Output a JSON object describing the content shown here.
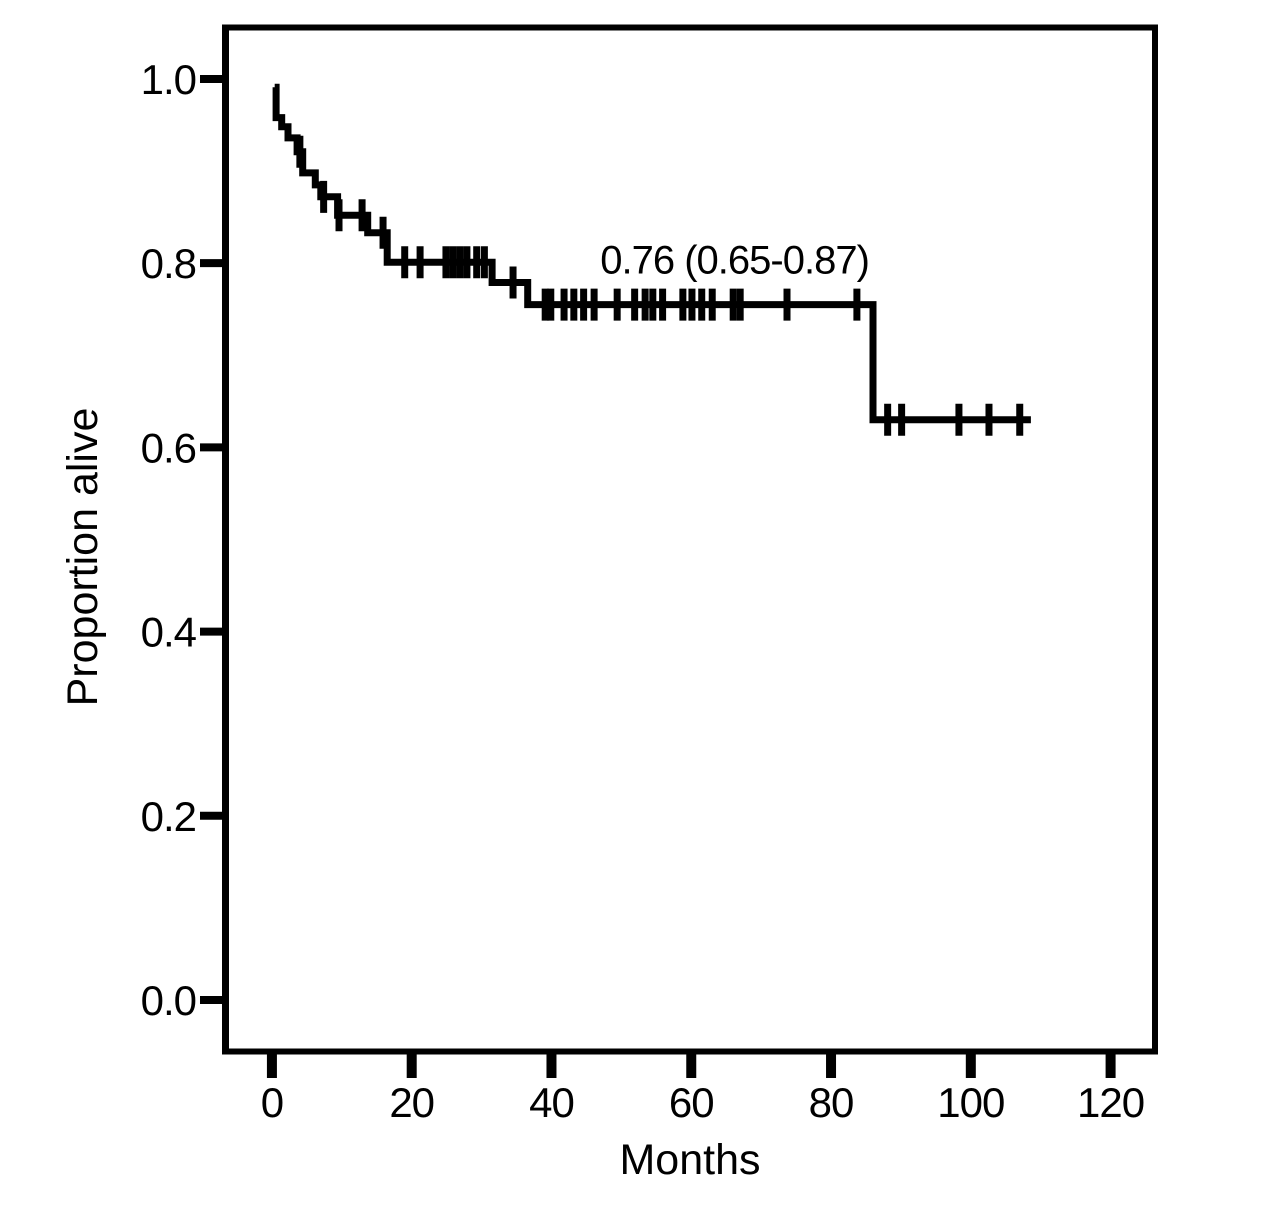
{
  "page": {
    "background_color": "#ffffff",
    "foreground_color": "#000000"
  },
  "chart_data": {
    "type": "line",
    "chart_kind": "kaplan-meier-step-curve",
    "title": "",
    "xlabel": "Months",
    "ylabel": "Proportion alive",
    "grid": "off",
    "legend": "none",
    "line_color": "#000000",
    "annotation": {
      "text": "0.76 (0.65-0.87)",
      "month": 66.2,
      "proportion": 0.805
    },
    "x_axis": {
      "ticks": [
        0,
        20,
        40,
        60,
        80,
        100,
        120
      ],
      "tick_labels": [
        "0",
        "20",
        "40",
        "60",
        "80",
        "100",
        "120"
      ],
      "range": [
        -7.0,
        126.64
      ]
    },
    "y_axis": {
      "ticks": [
        0.0,
        0.2,
        0.4,
        0.6,
        0.8,
        1.0
      ],
      "tick_labels": [
        "0.0",
        "0.2",
        "0.4",
        "0.6",
        "0.8",
        "1.0"
      ],
      "range": [
        -0.0586,
        1.0564
      ]
    },
    "survival_steps": [
      [
        0.4,
        0.991
      ],
      [
        0.6,
        0.958
      ],
      [
        1.4,
        0.948
      ],
      [
        2.3,
        0.936
      ],
      [
        3.6,
        0.921
      ],
      [
        4.4,
        0.898
      ],
      [
        6.2,
        0.885
      ],
      [
        7.0,
        0.872
      ],
      [
        9.4,
        0.852
      ],
      [
        13.7,
        0.833
      ],
      [
        16.5,
        0.801
      ],
      [
        31.5,
        0.779
      ],
      [
        36.6,
        0.755
      ],
      [
        86.0,
        0.63
      ],
      [
        108.6,
        0.63
      ]
    ],
    "censor_marks": [
      [
        4.0,
        0.921
      ],
      [
        7.4,
        0.872
      ],
      [
        9.6,
        0.852
      ],
      [
        12.9,
        0.852
      ],
      [
        15.9,
        0.833
      ],
      [
        19.0,
        0.801
      ],
      [
        21.2,
        0.801
      ],
      [
        24.9,
        0.801
      ],
      [
        25.9,
        0.801
      ],
      [
        26.9,
        0.801
      ],
      [
        27.9,
        0.801
      ],
      [
        29.3,
        0.801
      ],
      [
        30.4,
        0.801
      ],
      [
        34.5,
        0.779
      ],
      [
        39.1,
        0.755
      ],
      [
        39.9,
        0.755
      ],
      [
        41.8,
        0.755
      ],
      [
        43.2,
        0.755
      ],
      [
        44.6,
        0.755
      ],
      [
        46.1,
        0.755
      ],
      [
        49.4,
        0.755
      ],
      [
        51.9,
        0.755
      ],
      [
        53.4,
        0.755
      ],
      [
        54.5,
        0.755
      ],
      [
        55.9,
        0.755
      ],
      [
        58.8,
        0.755
      ],
      [
        60.1,
        0.755
      ],
      [
        61.5,
        0.755
      ],
      [
        63.0,
        0.755
      ],
      [
        66.0,
        0.755
      ],
      [
        67.0,
        0.755
      ],
      [
        73.7,
        0.755
      ],
      [
        83.7,
        0.755
      ],
      [
        88.1,
        0.63
      ],
      [
        90.1,
        0.63
      ],
      [
        98.3,
        0.63
      ],
      [
        102.6,
        0.63
      ],
      [
        107.0,
        0.63
      ]
    ]
  }
}
